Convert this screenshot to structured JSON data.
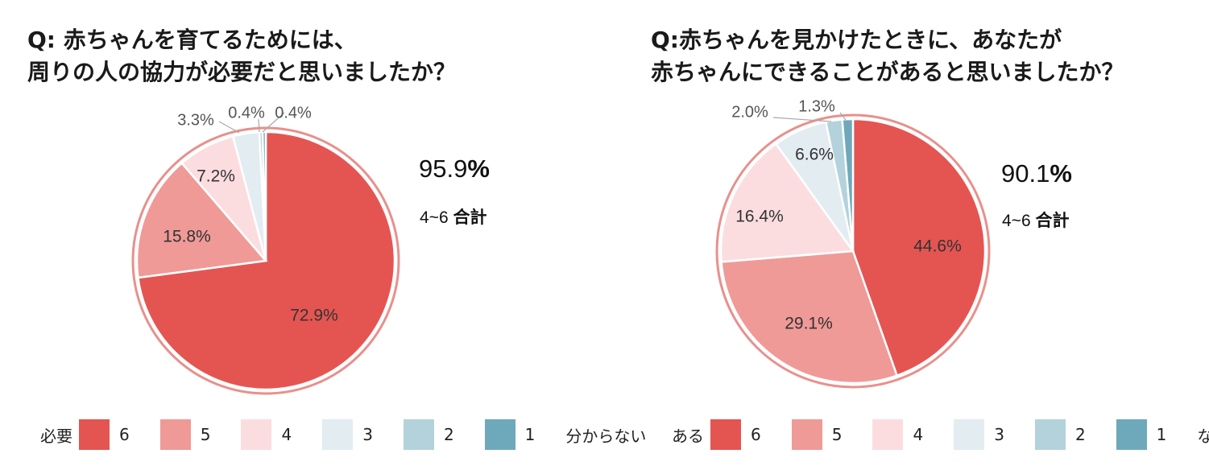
{
  "chart_data": [
    {
      "type": "pie",
      "title_lines": [
        "Q: 赤ちゃんを育てるためには、",
        "周りの人の協力が必要だと思いましたか？"
      ],
      "slices": [
        {
          "category": "6",
          "value": 72.9,
          "label": "72.9%",
          "color": "#e45552"
        },
        {
          "category": "5",
          "value": 15.8,
          "label": "15.8%",
          "color": "#ef9a97"
        },
        {
          "category": "4",
          "value": 7.2,
          "label": "7.2%",
          "color": "#fbdde0"
        },
        {
          "category": "3",
          "value": 3.3,
          "label": "3.3%",
          "color": "#e2ecf1"
        },
        {
          "category": "2",
          "value": 0.4,
          "label": "0.4%",
          "color": "#b4d2db"
        },
        {
          "category": "1",
          "value": 0.4,
          "label": "0.4%",
          "color": "#6ea8bb"
        }
      ],
      "total_value": "95.9",
      "total_unit": "%",
      "total_range": "4~6",
      "total_word": "合計",
      "legend_left": "必要",
      "legend_right": "分からない"
    },
    {
      "type": "pie",
      "title_lines": [
        "Q:赤ちゃんを見かけたときに、あなたが",
        "赤ちゃんにできることがあると思いましたか？"
      ],
      "slices": [
        {
          "category": "6",
          "value": 44.6,
          "label": "44.6%",
          "color": "#e45552"
        },
        {
          "category": "5",
          "value": 29.1,
          "label": "29.1%",
          "color": "#ef9a97"
        },
        {
          "category": "4",
          "value": 16.4,
          "label": "16.4%",
          "color": "#fbdde0"
        },
        {
          "category": "3",
          "value": 6.6,
          "label": "6.6%",
          "color": "#e2ecf1"
        },
        {
          "category": "2",
          "value": 2.0,
          "label": "2.0%",
          "color": "#b4d2db"
        },
        {
          "category": "1",
          "value": 1.3,
          "label": "1.3%",
          "color": "#6ea8bb"
        }
      ],
      "total_value": "90.1",
      "total_unit": "%",
      "total_range": "4~6",
      "total_word": "合計",
      "legend_left": "ある",
      "legend_right": "ない"
    }
  ],
  "colors": {
    "ring": "#e8908c"
  }
}
